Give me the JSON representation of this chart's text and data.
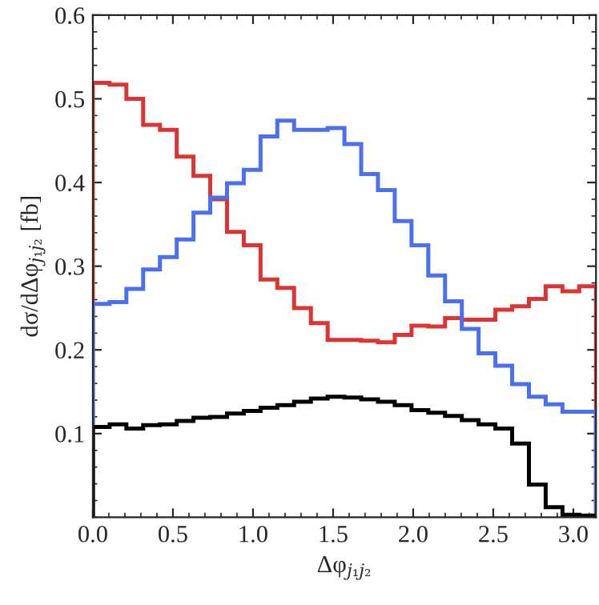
{
  "chart_data": {
    "type": "histogram",
    "xlabel": "Δφ$_{j₁j₂}$",
    "ylabel": "dσ/dΔφ$_{j₁j₂}$ [fb]",
    "bins": [
      0,
      0.1047,
      0.2094,
      0.3142,
      0.4189,
      0.5236,
      0.6283,
      0.733,
      0.8378,
      0.9425,
      1.0472,
      1.1519,
      1.2566,
      1.3614,
      1.4661,
      1.5708,
      1.6755,
      1.7802,
      1.885,
      1.9897,
      2.0944,
      2.1991,
      2.3038,
      2.4086,
      2.5133,
      2.618,
      2.7227,
      2.8274,
      2.9322,
      3.0369,
      3.1416
    ],
    "series": [
      {
        "color": "#dd3333",
        "values": [
          0.519,
          0.517,
          0.5,
          0.469,
          0.463,
          0.431,
          0.408,
          0.38,
          0.341,
          0.325,
          0.284,
          0.274,
          0.25,
          0.232,
          0.212,
          0.212,
          0.211,
          0.209,
          0.218,
          0.229,
          0.228,
          0.238,
          0.236,
          0.236,
          0.248,
          0.252,
          0.261,
          0.276,
          0.27,
          0.276
        ]
      },
      {
        "color": "#4a6ff0",
        "values": [
          0.255,
          0.257,
          0.273,
          0.296,
          0.311,
          0.332,
          0.364,
          0.382,
          0.399,
          0.415,
          0.455,
          0.474,
          0.463,
          0.463,
          0.465,
          0.446,
          0.41,
          0.391,
          0.354,
          0.325,
          0.289,
          0.258,
          0.225,
          0.196,
          0.181,
          0.159,
          0.144,
          0.135,
          0.126,
          0.126
        ]
      },
      {
        "color": "#000000",
        "values": [
          0.108,
          0.111,
          0.106,
          0.11,
          0.111,
          0.115,
          0.119,
          0.12,
          0.124,
          0.127,
          0.131,
          0.134,
          0.138,
          0.142,
          0.144,
          0.143,
          0.141,
          0.138,
          0.134,
          0.128,
          0.125,
          0.121,
          0.116,
          0.111,
          0.106,
          0.088,
          0.039,
          0.012,
          0.003,
          0.002
        ]
      }
    ],
    "xlim": [
      0,
      3.1416
    ],
    "ylim": [
      0,
      0.6
    ],
    "xticks": [
      {
        "value": 0,
        "label": "0.0"
      },
      {
        "value": 0.5,
        "label": "0.5"
      },
      {
        "value": 1,
        "label": "1.0"
      },
      {
        "value": 1.5,
        "label": "1.5"
      },
      {
        "value": 2,
        "label": "2.0"
      },
      {
        "value": 2.5,
        "label": "2.5"
      },
      {
        "value": 3,
        "label": "3.0"
      }
    ],
    "yticks": [
      0.1,
      0.2,
      0.3,
      0.4,
      0.5,
      0.6
    ],
    "grid": false,
    "legend": false
  }
}
